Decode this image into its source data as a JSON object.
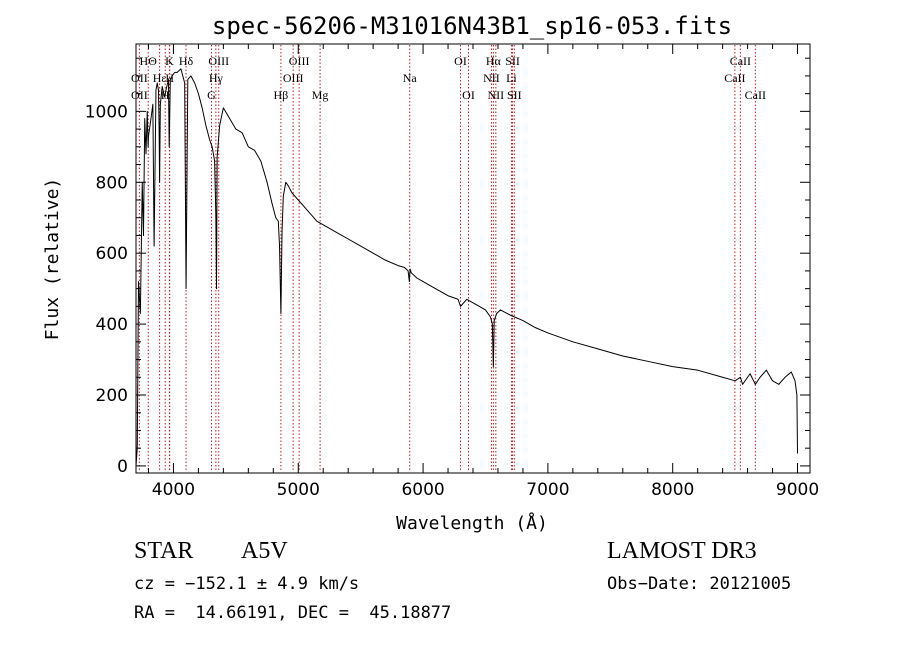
{
  "chart_data": {
    "type": "line",
    "title": "spec-56206-M31016N43B1_sp16-053.fits",
    "xlabel": "Wavelength (Å)",
    "ylabel": "Flux (relative)",
    "xlim": [
      3700,
      9100
    ],
    "ylim": [
      -20,
      1190
    ],
    "xticks": [
      4000,
      5000,
      6000,
      7000,
      8000,
      9000
    ],
    "xtick_labels": [
      "4000",
      "5000",
      "6000",
      "7000",
      "8000",
      "9000"
    ],
    "yticks": [
      0,
      200,
      400,
      600,
      800,
      1000
    ],
    "ytick_labels": [
      "0",
      "200",
      "400",
      "600",
      "800",
      "1000"
    ],
    "series": [
      {
        "name": "Flux",
        "color": "#000000",
        "x": [
          3700,
          3710,
          3720,
          3735,
          3750,
          3760,
          3770,
          3780,
          3790,
          3797,
          3800,
          3820,
          3835,
          3845,
          3860,
          3870,
          3880,
          3885,
          3889,
          3895,
          3910,
          3930,
          3940,
          3960,
          3966,
          3975,
          3990,
          4010,
          4030,
          4060,
          4090,
          4101,
          4115,
          4140,
          4170,
          4200,
          4230,
          4260,
          4290,
          4310,
          4330,
          4340,
          4345,
          4350,
          4370,
          4400,
          4450,
          4500,
          4550,
          4600,
          4650,
          4700,
          4750,
          4790,
          4820,
          4840,
          4850,
          4861,
          4870,
          4880,
          4900,
          4920,
          4950,
          5000,
          5050,
          5100,
          5150,
          5200,
          5300,
          5400,
          5500,
          5600,
          5700,
          5800,
          5850,
          5880,
          5890,
          5896,
          5905,
          5950,
          6000,
          6100,
          6200,
          6280,
          6300,
          6350,
          6400,
          6450,
          6500,
          6540,
          6555,
          6563,
          6570,
          6590,
          6620,
          6700,
          6800,
          6900,
          7000,
          7200,
          7400,
          7600,
          7800,
          8000,
          8200,
          8400,
          8500,
          8542,
          8560,
          8600,
          8620,
          8662,
          8700,
          8750,
          8800,
          8850,
          8900,
          8950,
          8980,
          8995,
          9000
        ],
        "y": [
          0,
          50,
          520,
          430,
          800,
          650,
          980,
          880,
          1000,
          900,
          930,
          980,
          1020,
          620,
          1060,
          1080,
          1060,
          960,
          800,
          1020,
          1070,
          1040,
          1060,
          1090,
          900,
          1090,
          1100,
          1110,
          1110,
          1120,
          1080,
          500,
          1090,
          1100,
          1080,
          1050,
          1010,
          960,
          920,
          900,
          860,
          700,
          500,
          870,
          960,
          1010,
          980,
          950,
          940,
          900,
          890,
          860,
          800,
          740,
          700,
          690,
          620,
          430,
          660,
          760,
          800,
          790,
          770,
          750,
          730,
          710,
          690,
          680,
          660,
          640,
          620,
          600,
          580,
          565,
          560,
          550,
          520,
          555,
          545,
          530,
          520,
          500,
          480,
          470,
          450,
          470,
          460,
          450,
          440,
          420,
          400,
          280,
          410,
          430,
          440,
          425,
          410,
          390,
          375,
          350,
          330,
          310,
          295,
          280,
          270,
          250,
          240,
          250,
          230,
          250,
          260,
          230,
          250,
          270,
          240,
          230,
          250,
          265,
          240,
          200,
          35
        ]
      }
    ],
    "annotations": [
      {
        "label": "HΘ",
        "x": 3798,
        "row": 1
      },
      {
        "label": "OII",
        "x": 3727,
        "row": 2
      },
      {
        "label": "OII",
        "x": 3727,
        "row": 3
      },
      {
        "label": "Hε",
        "x": 3889,
        "row": 2
      },
      {
        "label": "H",
        "x": 3934,
        "row": 3
      },
      {
        "label": "K",
        "x": 3968,
        "row": 1
      },
      {
        "label": "H",
        "x": 3970,
        "row": 2
      },
      {
        "label": "Hδ",
        "x": 4101,
        "row": 1
      },
      {
        "label": "Hγ",
        "x": 4340,
        "row": 2
      },
      {
        "label": "G",
        "x": 4305,
        "row": 3
      },
      {
        "label": "OIII",
        "x": 4363,
        "row": 1
      },
      {
        "label": "Hβ",
        "x": 4861,
        "row": 3
      },
      {
        "label": "OIII",
        "x": 4959,
        "row": 2
      },
      {
        "label": "OIII",
        "x": 5007,
        "row": 1
      },
      {
        "label": "Mg",
        "x": 5175,
        "row": 3
      },
      {
        "label": "Na",
        "x": 5893,
        "row": 2
      },
      {
        "label": "OI",
        "x": 6300,
        "row": 1
      },
      {
        "label": "OI",
        "x": 6364,
        "row": 3
      },
      {
        "label": "Hα",
        "x": 6563,
        "row": 1
      },
      {
        "label": "NII",
        "x": 6548,
        "row": 2
      },
      {
        "label": "NII",
        "x": 6583,
        "row": 3
      },
      {
        "label": "SII",
        "x": 6717,
        "row": 1
      },
      {
        "label": "Li",
        "x": 6708,
        "row": 2
      },
      {
        "label": "SII",
        "x": 6731,
        "row": 3
      },
      {
        "label": "CaII",
        "x": 8542,
        "row": 1
      },
      {
        "label": "CaII",
        "x": 8498,
        "row": 2
      },
      {
        "label": "CaII",
        "x": 8662,
        "row": 3
      }
    ]
  },
  "info": {
    "object_type": "STAR",
    "subclass": "A5V",
    "cz": "cz = −152.1 ± 4.9 km/s",
    "coords": "RA =  14.66191, DEC =  45.18877",
    "survey": "LAMOST DR3",
    "obs_date": "Obs−Date: 20121005"
  },
  "colors": {
    "line_marker": "#b22222",
    "spectrum": "#000000"
  }
}
